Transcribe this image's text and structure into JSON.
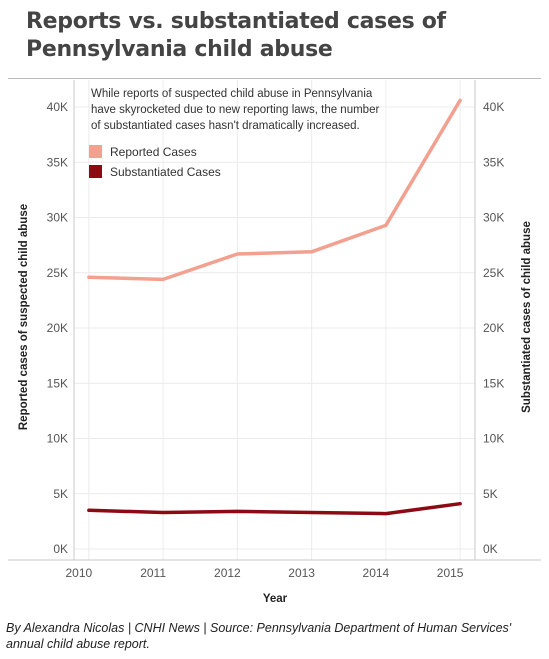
{
  "header": {
    "title_line1": "Reports vs. substantiated cases of",
    "title_line2": "Pennsylvania child abuse"
  },
  "footer": {
    "byline_line1": "By Alexandra Nicolas | CNHI News | Source: Pennsylvania Department of Human Services'",
    "byline_line2": "annual child abuse report."
  },
  "chart_data": {
    "type": "line",
    "x": [
      2010,
      2011,
      2012,
      2013,
      2014,
      2015
    ],
    "x_tick_labels": [
      "2010",
      "2011",
      "2012",
      "2013",
      "2014",
      "2015"
    ],
    "xlabel": "Year",
    "ylabel_left": "Reported cases of suspected child abuse",
    "ylabel_right": "Substantiated cases of child abuse",
    "ylim": [
      0,
      42000
    ],
    "y_ticks": [
      0,
      5000,
      10000,
      15000,
      20000,
      25000,
      30000,
      35000,
      40000
    ],
    "y_tick_labels": [
      "0K",
      "5K",
      "10K",
      "15K",
      "20K",
      "25K",
      "30K",
      "35K",
      "40K"
    ],
    "grid": true,
    "legend_position": "top-left",
    "annotation": [
      "While reports of suspected child abuse in Pennsylvania",
      "have skyrocketed due to new reporting laws, the number",
      "of substantiated cases hasn't dramatically increased."
    ],
    "series": [
      {
        "name": "Reported Cases",
        "color": "#f2a08f",
        "values": [
          24600,
          24400,
          26700,
          26900,
          29300,
          40600
        ]
      },
      {
        "name": "Substantiated Cases",
        "color": "#8b0a14",
        "values": [
          3500,
          3300,
          3400,
          3300,
          3200,
          4100
        ]
      }
    ]
  }
}
